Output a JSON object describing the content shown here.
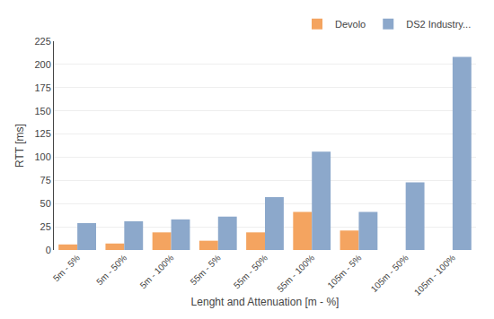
{
  "chart_data": {
    "type": "bar",
    "xlabel": "Lenght and Attenuation [m - %]",
    "ylabel": "RTT [ms]",
    "categories": [
      "5m - 5%",
      "5m - 50%",
      "5m - 100%",
      "55m - 5%",
      "55m - 50%",
      "55m - 100%",
      "105m - 5%",
      "105m - 50%",
      "105m - 100%"
    ],
    "series": [
      {
        "name": "Devolo",
        "color": "#F4A460",
        "values": [
          6,
          7,
          19,
          10,
          19,
          41,
          21,
          0,
          0
        ]
      },
      {
        "name": "DS2 Industry...",
        "color": "#8CA8CB",
        "values": [
          29,
          31,
          33,
          36,
          57,
          106,
          41,
          73,
          208
        ]
      }
    ],
    "ylim": [
      0,
      225
    ],
    "yticks": [
      0,
      25,
      50,
      75,
      100,
      125,
      150,
      175,
      200,
      225
    ],
    "grid": true,
    "legend": "upper right"
  }
}
